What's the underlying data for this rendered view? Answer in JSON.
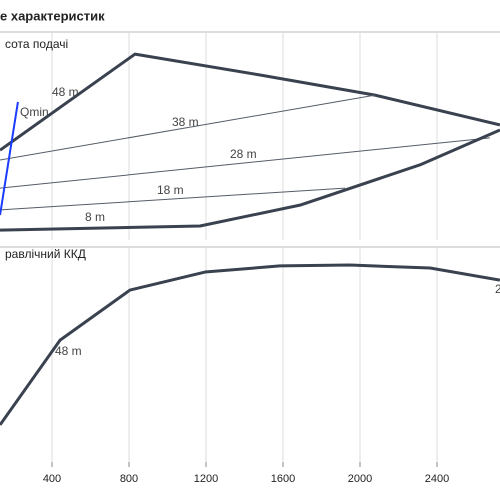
{
  "title": "е характеристик",
  "chart_data": [
    {
      "type": "line",
      "title": "сота подачі",
      "xlim": [
        0,
        2800
      ],
      "ylim": [
        0,
        60
      ],
      "xticks": [
        400,
        800,
        1200,
        1600,
        2000,
        2400
      ],
      "grid": true,
      "series": [
        {
          "name": "48 m",
          "color": "#3a4250",
          "x": [
            130,
            831,
            1481,
            2078,
            2727
          ],
          "values": [
            26.3,
            54.4,
            48.3,
            42.4,
            33.7
          ]
        },
        {
          "name": "38 m",
          "color": "#555c66",
          "x": [
            130,
            2078
          ],
          "values": [
            23.4,
            42.4
          ]
        },
        {
          "name": "28 m",
          "color": "#555c66",
          "x": [
            130,
            2675
          ],
          "values": [
            15.2,
            29.9
          ]
        },
        {
          "name": "18 m",
          "color": "#555c66",
          "x": [
            130,
            1922
          ],
          "values": [
            8.8,
            15.2
          ]
        },
        {
          "name": "8 m",
          "color": "#3a4250",
          "x": [
            130,
            1169,
            1688,
            2312,
            2727
          ],
          "values": [
            2.9,
            4.1,
            10.2,
            22,
            32.2
          ]
        },
        {
          "name": "Qmin",
          "color": "#1a3cff",
          "x": [
            130,
            223
          ],
          "values": [
            7.3,
            40.4
          ]
        }
      ]
    },
    {
      "type": "line",
      "title": "равлічний ККД",
      "xlim": [
        0,
        2800
      ],
      "ylim": [
        0,
        100
      ],
      "xticks": [
        400,
        800,
        1200,
        1600,
        2000,
        2400
      ],
      "grid": true,
      "annotations": [
        "2"
      ],
      "series": [
        {
          "name": "48 m",
          "color": "#3a4250",
          "x": [
            130,
            442,
            805,
            1195,
            1584,
            1948,
            2364,
            2727
          ],
          "values": [
            17.5,
            57.5,
            81.1,
            89.6,
            92.5,
            92.9,
            91.5,
            85.8
          ]
        }
      ]
    }
  ]
}
